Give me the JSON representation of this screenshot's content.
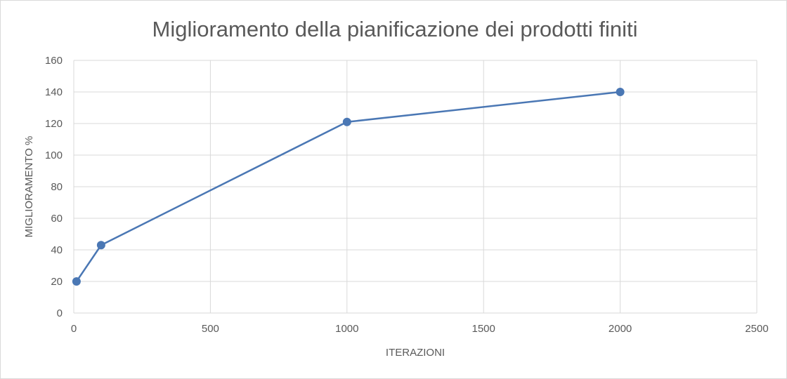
{
  "chart_data": {
    "type": "scatter",
    "title": "Miglioramento della pianificazione dei prodotti finiti",
    "xlabel": "ITERAZIONI",
    "ylabel": "MIGLIORAMENTO %",
    "xlim": [
      0,
      2500
    ],
    "ylim": [
      0,
      160
    ],
    "x_ticks": [
      0,
      500,
      1000,
      1500,
      2000,
      2500
    ],
    "y_ticks": [
      0,
      20,
      40,
      60,
      80,
      100,
      120,
      140,
      160
    ],
    "grid": true,
    "legend": "none",
    "series": [
      {
        "color": "#4a77b4",
        "markers": true,
        "lines": true,
        "points": [
          {
            "x": 10,
            "y": 20
          },
          {
            "x": 100,
            "y": 43
          },
          {
            "x": 1000,
            "y": 121
          },
          {
            "x": 2000,
            "y": 140
          }
        ]
      }
    ]
  }
}
